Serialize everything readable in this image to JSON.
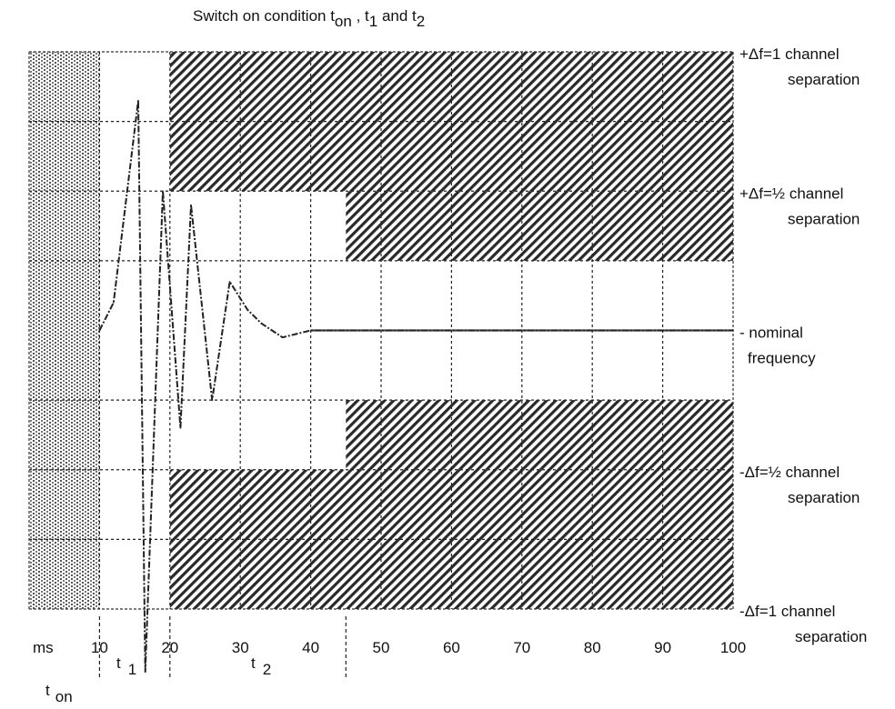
{
  "chart_data": {
    "type": "line",
    "title": {
      "main": "Switch on condition t",
      "sub_on": "on",
      "comma1": " , t",
      "sub_1": "1",
      "and": " and t",
      "sub_2": "2"
    },
    "xlabel": "ms",
    "xlim": [
      0,
      100
    ],
    "ylim": [
      -2,
      2
    ],
    "x_ticks": [
      {
        "value": 10,
        "label": "10"
      },
      {
        "value": 20,
        "label": "20"
      },
      {
        "value": 30,
        "label": "30"
      },
      {
        "value": 40,
        "label": "40"
      },
      {
        "value": 50,
        "label": "50"
      },
      {
        "value": 60,
        "label": "60"
      },
      {
        "value": 70,
        "label": "70"
      },
      {
        "value": 80,
        "label": "80"
      },
      {
        "value": 90,
        "label": "90"
      },
      {
        "value": 100,
        "label": "100"
      }
    ],
    "y_labels": [
      {
        "value": 2,
        "line1": "+Δf=1 channel",
        "line2": "separation"
      },
      {
        "value": 1,
        "line1": "+Δf=½ channel",
        "line2": "separation"
      },
      {
        "value": 0,
        "line1": "- nominal",
        "line2": "frequency"
      },
      {
        "value": -1,
        "line1": "-Δf=½ channel",
        "line2": "separation"
      },
      {
        "value": -2,
        "line1": "-Δf=1 channel",
        "line2": "separation"
      }
    ],
    "period_labels": {
      "t_on": {
        "main": "t",
        "sub": "on"
      },
      "t1": {
        "main": "t",
        "sub": "1"
      },
      "t2": {
        "main": "t",
        "sub": "2"
      }
    },
    "series": [
      {
        "x": [
          10,
          12,
          15.5,
          16.5,
          19,
          21.5,
          23,
          26,
          28.5,
          31,
          33,
          36,
          40,
          100
        ],
        "values": [
          0,
          0.2,
          1.65,
          -2.45,
          1.0,
          -0.7,
          0.9,
          -0.5,
          0.35,
          0.15,
          0.05,
          -0.05,
          0,
          0
        ]
      }
    ],
    "hatched_regions": [
      {
        "x": [
          0,
          10
        ],
        "y": [
          -2,
          2
        ],
        "style": "dense-dotted"
      },
      {
        "x": [
          20,
          100
        ],
        "y": [
          1,
          2
        ],
        "style": "hatched"
      },
      {
        "x": [
          45,
          100
        ],
        "y": [
          0.5,
          1
        ],
        "style": "hatched"
      },
      {
        "x": [
          45,
          100
        ],
        "y": [
          -1,
          -0.5
        ],
        "style": "hatched"
      },
      {
        "x": [
          20,
          100
        ],
        "y": [
          -2,
          -1
        ],
        "style": "hatched"
      }
    ],
    "markers_below_axis": [
      10,
      20,
      45
    ],
    "grid": true
  }
}
